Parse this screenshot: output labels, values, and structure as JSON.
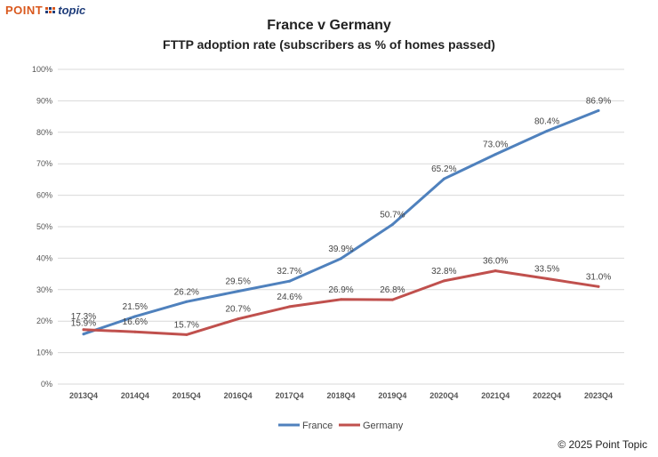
{
  "brand": {
    "point": "POINT",
    "topic": "topic"
  },
  "copyright": "© 2025 Point Topic",
  "colors": {
    "france": "#4f81bd",
    "germany": "#c0504d",
    "grid": "#d9d9d9"
  },
  "chart_data": {
    "type": "line",
    "title": "France v Germany",
    "subtitle": "FTTP adoption rate (subscribers as % of homes passed)",
    "xlabel": "",
    "ylabel": "",
    "ylim": [
      0,
      100
    ],
    "ytick_step": 10,
    "grid": true,
    "legend_position": "bottom-center",
    "categories": [
      "2013Q4",
      "2014Q4",
      "2015Q4",
      "2016Q4",
      "2017Q4",
      "2018Q4",
      "2019Q4",
      "2020Q4",
      "2021Q4",
      "2022Q4",
      "2023Q4"
    ],
    "series": [
      {
        "name": "France",
        "values": [
          15.9,
          21.5,
          26.2,
          29.5,
          32.7,
          39.9,
          50.7,
          65.2,
          73.0,
          80.4,
          86.9
        ],
        "labels": [
          "15.9%",
          "21.5%",
          "26.2%",
          "29.5%",
          "32.7%",
          "39.9%",
          "50.7%",
          "65.2%",
          "73.0%",
          "80.4%",
          "86.9%"
        ]
      },
      {
        "name": "Germany",
        "values": [
          17.3,
          16.6,
          15.7,
          20.7,
          24.6,
          26.9,
          26.8,
          32.8,
          36.0,
          33.5,
          31.0
        ],
        "labels": [
          "17.3%",
          "16.6%",
          "15.7%",
          "20.7%",
          "24.6%",
          "26.9%",
          "26.8%",
          "32.8%",
          "36.0%",
          "33.5%",
          "31.0%"
        ]
      }
    ]
  }
}
